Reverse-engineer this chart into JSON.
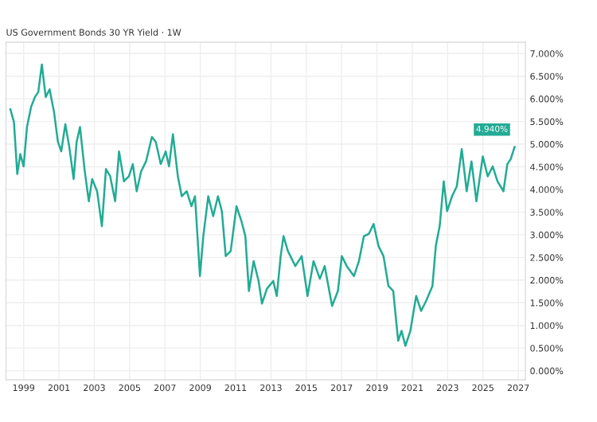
{
  "chart_data": {
    "type": "line",
    "title": "US Government Bonds 30 YR Yield · 1W",
    "annotations": [
      {
        "text": "4.940%",
        "x": 2026.79,
        "y": 4.94
      }
    ],
    "x": [
      1998.25,
      1998.45,
      1998.64,
      1998.81,
      1999.0,
      1999.19,
      1999.42,
      1999.64,
      1999.83,
      2000.03,
      2000.25,
      2000.47,
      2000.72,
      2000.94,
      2001.13,
      2001.36,
      2001.58,
      2001.83,
      2002.0,
      2002.19,
      2002.46,
      2002.69,
      2002.88,
      2003.16,
      2003.43,
      2003.66,
      2003.9,
      2004.18,
      2004.4,
      2004.68,
      2004.96,
      2005.18,
      2005.4,
      2005.65,
      2005.93,
      2006.26,
      2006.48,
      2006.76,
      2007.04,
      2007.23,
      2007.45,
      2007.73,
      2007.95,
      2008.23,
      2008.5,
      2008.7,
      2008.98,
      2009.17,
      2009.45,
      2009.73,
      2010.0,
      2010.22,
      2010.44,
      2010.72,
      2011.05,
      2011.33,
      2011.55,
      2011.75,
      2012.02,
      2012.3,
      2012.49,
      2012.77,
      2013.13,
      2013.33,
      2013.55,
      2013.71,
      2013.96,
      2014.38,
      2014.74,
      2015.07,
      2015.41,
      2015.77,
      2016.04,
      2016.46,
      2016.79,
      2017.01,
      2017.29,
      2017.7,
      2017.98,
      2018.26,
      2018.54,
      2018.81,
      2019.09,
      2019.37,
      2019.65,
      2019.92,
      2020.2,
      2020.39,
      2020.61,
      2020.89,
      2021.22,
      2021.5,
      2021.78,
      2022.14,
      2022.33,
      2022.55,
      2022.78,
      2022.97,
      2023.25,
      2023.52,
      2023.8,
      2024.08,
      2024.35,
      2024.63,
      2024.99,
      2025.27,
      2025.55,
      2025.82,
      2026.16,
      2026.38,
      2026.57,
      2026.79
    ],
    "series": [
      {
        "color": "#22ab94",
        "values": [
          5.77,
          5.49,
          4.34,
          4.78,
          4.51,
          5.38,
          5.82,
          6.04,
          6.15,
          6.76,
          6.04,
          6.21,
          5.71,
          5.05,
          4.84,
          5.44,
          4.95,
          4.23,
          5.05,
          5.38,
          4.4,
          3.74,
          4.23,
          3.96,
          3.19,
          4.45,
          4.29,
          3.74,
          4.84,
          4.18,
          4.29,
          4.56,
          3.96,
          4.4,
          4.62,
          5.16,
          5.05,
          4.56,
          4.84,
          4.51,
          5.22,
          4.29,
          3.85,
          3.96,
          3.63,
          3.85,
          2.09,
          2.97,
          3.85,
          3.41,
          3.85,
          3.52,
          2.53,
          2.64,
          3.63,
          3.3,
          2.97,
          1.76,
          2.42,
          1.98,
          1.48,
          1.81,
          1.98,
          1.65,
          2.53,
          2.97,
          2.64,
          2.31,
          2.53,
          1.65,
          2.42,
          2.03,
          2.31,
          1.43,
          1.76,
          2.53,
          2.31,
          2.09,
          2.42,
          2.97,
          3.02,
          3.24,
          2.75,
          2.53,
          1.87,
          1.76,
          0.66,
          0.88,
          0.55,
          0.88,
          1.65,
          1.32,
          1.54,
          1.87,
          2.75,
          3.19,
          4.18,
          3.52,
          3.85,
          4.07,
          4.89,
          3.96,
          4.62,
          3.74,
          4.73,
          4.29,
          4.51,
          4.18,
          3.96,
          4.56,
          4.67,
          4.94
        ]
      }
    ],
    "xlim": [
      1998.0,
      2027.4
    ],
    "xticks": [
      {
        "value": 1999,
        "label": "1999"
      },
      {
        "value": 2001,
        "label": "2001"
      },
      {
        "value": 2003,
        "label": "2003"
      },
      {
        "value": 2005,
        "label": "2005"
      },
      {
        "value": 2007,
        "label": "2007"
      },
      {
        "value": 2009,
        "label": "2009"
      },
      {
        "value": 2011,
        "label": "2011"
      },
      {
        "value": 2013,
        "label": "2013"
      },
      {
        "value": 2015,
        "label": "2015"
      },
      {
        "value": 2017,
        "label": "2017"
      },
      {
        "value": 2019,
        "label": "2019"
      },
      {
        "value": 2021,
        "label": "2021"
      },
      {
        "value": 2023,
        "label": "2023"
      },
      {
        "value": 2025,
        "label": "2025"
      },
      {
        "value": 2027,
        "label": "2027"
      }
    ],
    "ylim": [
      -0.2,
      7.25
    ],
    "yticks": [
      {
        "value": 0,
        "label": "0.000%"
      },
      {
        "value": 0.5,
        "label": "0.500%"
      },
      {
        "value": 1,
        "label": "1.000%"
      },
      {
        "value": 1.5,
        "label": "1.500%"
      },
      {
        "value": 2,
        "label": "2.000%"
      },
      {
        "value": 2.5,
        "label": "2.500%"
      },
      {
        "value": 3,
        "label": "3.000%"
      },
      {
        "value": 3.5,
        "label": "3.500%"
      },
      {
        "value": 4,
        "label": "4.000%"
      },
      {
        "value": 4.5,
        "label": "4.500%"
      },
      {
        "value": 5,
        "label": "5.000%"
      },
      {
        "value": 5.5,
        "label": "5.500%"
      },
      {
        "value": 6,
        "label": "6.000%"
      },
      {
        "value": 6.5,
        "label": "6.500%"
      },
      {
        "value": 7,
        "label": "7.000%"
      }
    ],
    "grid": true,
    "marker": "none",
    "line_style": "solid",
    "legend": false
  }
}
